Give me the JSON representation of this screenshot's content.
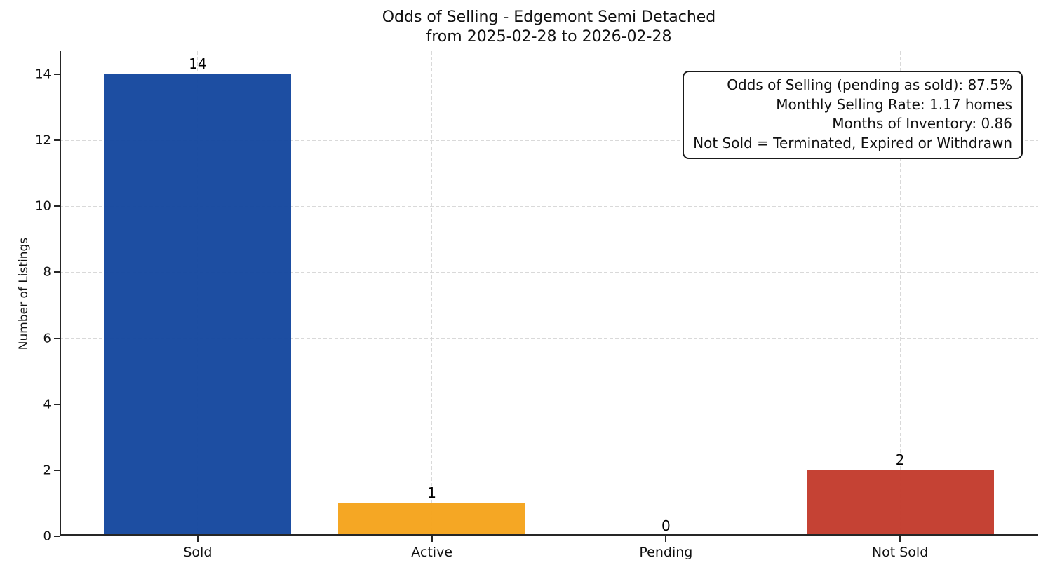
{
  "title": {
    "line1": "Odds of Selling - Edgemont Semi Detached",
    "line2": "from 2025-02-28 to 2026-02-28"
  },
  "annotation_box": {
    "lines": [
      "Odds of Selling (pending as sold): 87.5%",
      "Monthly Selling Rate: 1.17 homes",
      "Months of Inventory: 0.86",
      "Not Sold = Terminated, Expired or Withdrawn"
    ]
  },
  "chart_data": {
    "type": "bar",
    "title": "Odds of Selling - Edgemont Semi Detached\nfrom 2025-02-28 to 2026-02-28",
    "categories": [
      "Sold",
      "Active",
      "Pending",
      "Not Sold"
    ],
    "values": [
      14,
      1,
      0,
      2
    ],
    "bar_colors": [
      "#14479e",
      "#f5a31b",
      null,
      "#c33a2c"
    ],
    "xlabel": "",
    "ylabel": "Number of Listings",
    "yticks": [
      0,
      2,
      4,
      6,
      8,
      10,
      12,
      14
    ],
    "ylim": [
      0,
      14.7
    ],
    "grid": true,
    "grid_style": "dashed",
    "grid_color": "#d9d9d9",
    "spine_color": "#262626",
    "legend_position": "none",
    "annotation_position": "upper-right",
    "bar_width_fraction": 0.8
  }
}
